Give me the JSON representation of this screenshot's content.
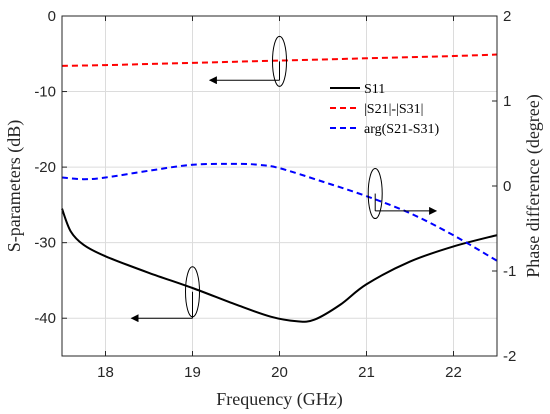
{
  "chart_data": {
    "type": "line",
    "title": "",
    "xlabel": "Frequency (GHz)",
    "ylabel_left": "S-parameters (dB)",
    "ylabel_right": "Phase difference (degree)",
    "xlim": [
      17.5,
      22.5
    ],
    "ylim_left": [
      -45,
      0
    ],
    "ylim_right": [
      -2,
      2
    ],
    "x_ticks": [
      18,
      19,
      20,
      21,
      22
    ],
    "x_tick_labels": [
      "18",
      "19",
      "20",
      "21",
      "22"
    ],
    "y_left_ticks": [
      0,
      -10,
      -20,
      -30,
      -40
    ],
    "y_left_tick_labels": [
      "0",
      "-10",
      "-20",
      "-30",
      "-40"
    ],
    "y_right_ticks": [
      2,
      1,
      0,
      -1,
      -2
    ],
    "y_right_tick_labels": [
      "2",
      "1",
      "0",
      "-1",
      "-2"
    ],
    "grid": true,
    "legend_position": "top-right",
    "series": [
      {
        "name": "S11",
        "axis": "left",
        "color": "#000000",
        "dash": "solid",
        "x": [
          17.5,
          17.6,
          17.75,
          18.0,
          18.5,
          19.0,
          19.5,
          19.9,
          20.2,
          20.4,
          20.7,
          21.0,
          21.5,
          22.0,
          22.5
        ],
        "values": [
          -25.5,
          -28.5,
          -30.3,
          -31.8,
          -34.0,
          -36.0,
          -38.2,
          -39.8,
          -40.4,
          -40.2,
          -38.2,
          -35.5,
          -32.5,
          -30.5,
          -29.0
        ]
      },
      {
        "name": "|S21|-|S31|",
        "axis": "left",
        "color": "#ff0000",
        "dash": "dashed",
        "x": [
          17.5,
          18.0,
          18.5,
          19.0,
          19.5,
          20.0,
          20.5,
          21.0,
          21.5,
          22.0,
          22.5
        ],
        "values": [
          -6.6,
          -6.5,
          -6.35,
          -6.2,
          -6.05,
          -5.9,
          -5.75,
          -5.6,
          -5.45,
          -5.3,
          -5.1
        ]
      },
      {
        "name": "arg(S21-S31)",
        "axis": "right",
        "color": "#0000ff",
        "dash": "dashed",
        "x": [
          17.5,
          17.75,
          18.0,
          18.5,
          19.0,
          19.5,
          19.75,
          20.0,
          20.5,
          21.0,
          21.5,
          22.0,
          22.5
        ],
        "values": [
          0.1,
          0.08,
          0.1,
          0.18,
          0.25,
          0.26,
          0.25,
          0.21,
          0.05,
          -0.12,
          -0.32,
          -0.58,
          -0.88
        ]
      }
    ],
    "annotations": [
      {
        "target": "S11",
        "axis": "left",
        "ellipse_x": 19.0,
        "ellipse_y": -36.5,
        "arrow_to_x": 18.3,
        "arrow_to_y": -40.0
      },
      {
        "target": "|S21|-|S31|",
        "axis": "left",
        "ellipse_x": 20.0,
        "ellipse_y": -6.0,
        "arrow_to_x": 19.2,
        "arrow_to_y": -8.5
      },
      {
        "target": "arg(S21-S31)",
        "axis": "left",
        "ellipse_x": 21.1,
        "ellipse_y": -23.5,
        "arrow_to_x": 21.8,
        "arrow_to_y": -25.8
      }
    ]
  }
}
